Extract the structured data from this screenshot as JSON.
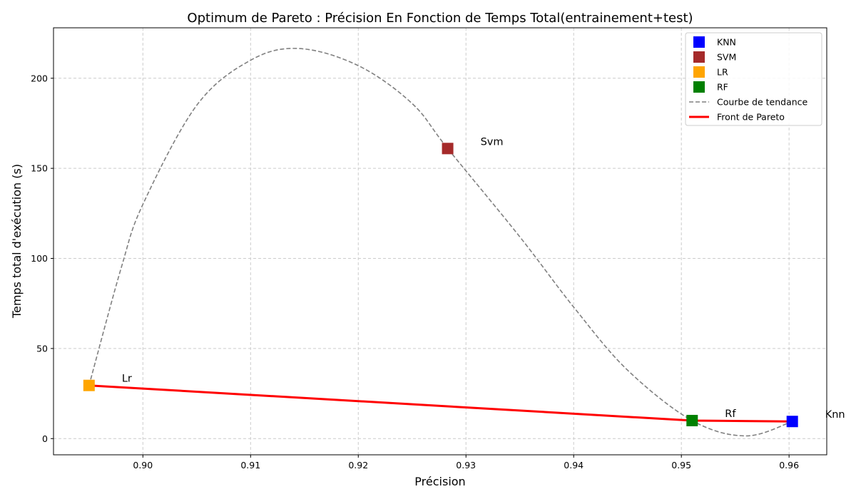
{
  "chart_data": {
    "type": "scatter",
    "title": "Optimum de Pareto : Précision En Fonction de  Temps Total(entrainement+test)",
    "xlabel": "Précision",
    "ylabel": "Temps total d'exécution (s)",
    "xlim": [
      0.8917,
      0.9635
    ],
    "ylim": [
      -9,
      228
    ],
    "xticks": [
      0.9,
      0.91,
      0.92,
      0.93,
      0.94,
      0.95,
      0.96
    ],
    "xtick_labels": [
      "0.90",
      "0.91",
      "0.92",
      "0.93",
      "0.94",
      "0.95",
      "0.96"
    ],
    "yticks": [
      0,
      50,
      100,
      150,
      200
    ],
    "ytick_labels": [
      "0",
      "50",
      "100",
      "150",
      "200"
    ],
    "grid": true,
    "legend_position": "top-right",
    "series": [
      {
        "name": "KNN",
        "color": "#0000ff",
        "marker": "square",
        "points": [
          {
            "x": 0.9603,
            "y": 9.5
          }
        ]
      },
      {
        "name": "SVM",
        "color": "#a52a2a",
        "marker": "square",
        "points": [
          {
            "x": 0.9283,
            "y": 161
          }
        ]
      },
      {
        "name": "LR",
        "color": "#ffa500",
        "marker": "square",
        "points": [
          {
            "x": 0.895,
            "y": 29.5
          }
        ]
      },
      {
        "name": "RF",
        "color": "#008000",
        "marker": "square",
        "points": [
          {
            "x": 0.951,
            "y": 10
          }
        ]
      }
    ],
    "annotations": [
      {
        "text": "Knn",
        "x": 0.9603,
        "y": 9.5
      },
      {
        "text": "Svm",
        "x": 0.9283,
        "y": 161
      },
      {
        "text": "Lr",
        "x": 0.895,
        "y": 29.5
      },
      {
        "text": "Rf",
        "x": 0.951,
        "y": 10
      }
    ],
    "trend_curve": {
      "name": "Courbe de tendance",
      "color": "#808080",
      "style": "dashed",
      "points": [
        {
          "x": 0.895,
          "y": 29.5
        },
        {
          "x": 0.898,
          "y": 95
        },
        {
          "x": 0.9,
          "y": 130
        },
        {
          "x": 0.905,
          "y": 185
        },
        {
          "x": 0.91,
          "y": 210
        },
        {
          "x": 0.9145,
          "y": 216.5
        },
        {
          "x": 0.92,
          "y": 207
        },
        {
          "x": 0.925,
          "y": 186
        },
        {
          "x": 0.9283,
          "y": 161
        },
        {
          "x": 0.935,
          "y": 112
        },
        {
          "x": 0.94,
          "y": 73
        },
        {
          "x": 0.945,
          "y": 38
        },
        {
          "x": 0.951,
          "y": 10
        },
        {
          "x": 0.956,
          "y": 1.5
        },
        {
          "x": 0.9603,
          "y": 9.5
        }
      ]
    },
    "pareto_front": {
      "name": "Front de Pareto",
      "color": "#ff0000",
      "points": [
        {
          "x": 0.895,
          "y": 29.5
        },
        {
          "x": 0.951,
          "y": 10
        },
        {
          "x": 0.9603,
          "y": 9.5
        }
      ]
    },
    "legend": [
      {
        "label": "KNN",
        "kind": "square",
        "color": "#0000ff"
      },
      {
        "label": "SVM",
        "kind": "square",
        "color": "#a52a2a"
      },
      {
        "label": "LR",
        "kind": "square",
        "color": "#ffa500"
      },
      {
        "label": "RF",
        "kind": "square",
        "color": "#008000"
      },
      {
        "label": "Courbe de tendance",
        "kind": "dashed-line",
        "color": "#808080"
      },
      {
        "label": "Front de Pareto",
        "kind": "solid-line",
        "color": "#ff0000"
      }
    ]
  }
}
